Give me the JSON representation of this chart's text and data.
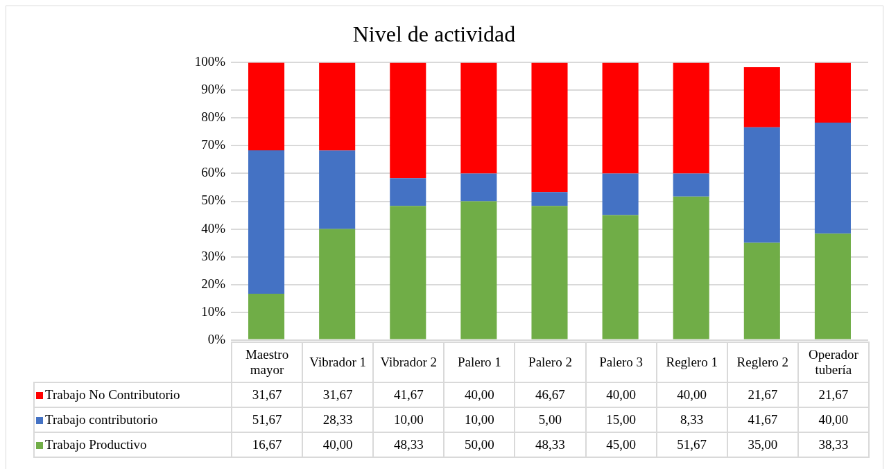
{
  "chart_data": {
    "type": "bar",
    "title": "Nivel de actividad",
    "stacked": true,
    "grid": "y",
    "legend": "bottom",
    "categories": [
      "Maestro mayor",
      "Vibrador 1",
      "Vibrador 2",
      "Palero 1",
      "Palero 2",
      "Palero 3",
      "Reglero 1",
      "Reglero 2",
      "Operador tubería"
    ],
    "ylim": [
      0,
      100
    ],
    "yticks": [
      {
        "value": 0,
        "label": "0%"
      },
      {
        "value": 10,
        "label": "10%"
      },
      {
        "value": 20,
        "label": "20%"
      },
      {
        "value": 30,
        "label": "30%"
      },
      {
        "value": 40,
        "label": "40%"
      },
      {
        "value": 50,
        "label": "50%"
      },
      {
        "value": 60,
        "label": "60%"
      },
      {
        "value": 70,
        "label": "70%"
      },
      {
        "value": 80,
        "label": "80%"
      },
      {
        "value": 90,
        "label": "90%"
      },
      {
        "value": 100,
        "label": "100%"
      }
    ],
    "series": [
      {
        "name": "Trabajo Productivo",
        "color": "#70ad47",
        "values": [
          16.67,
          40.0,
          48.33,
          50.0,
          48.33,
          45.0,
          51.67,
          35.0,
          38.33
        ],
        "value_labels": [
          "16,67",
          "40,00",
          "48,33",
          "50,00",
          "48,33",
          "45,00",
          "51,67",
          "35,00",
          "38,33"
        ]
      },
      {
        "name": "Trabajo contributorio",
        "color": "#4472c4",
        "values": [
          51.67,
          28.33,
          10.0,
          10.0,
          5.0,
          15.0,
          8.33,
          41.67,
          40.0
        ],
        "value_labels": [
          "51,67",
          "28,33",
          "10,00",
          "10,00",
          "5,00",
          "15,00",
          "8,33",
          "41,67",
          "40,00"
        ]
      },
      {
        "name": "Trabajo No Contributorio",
        "color": "#ff0000",
        "values": [
          31.67,
          31.67,
          41.67,
          40.0,
          46.67,
          40.0,
          40.0,
          21.67,
          21.67
        ],
        "value_labels": [
          "31,67",
          "31,67",
          "41,67",
          "40,00",
          "46,67",
          "40,00",
          "40,00",
          "21,67",
          "21,67"
        ]
      }
    ]
  }
}
